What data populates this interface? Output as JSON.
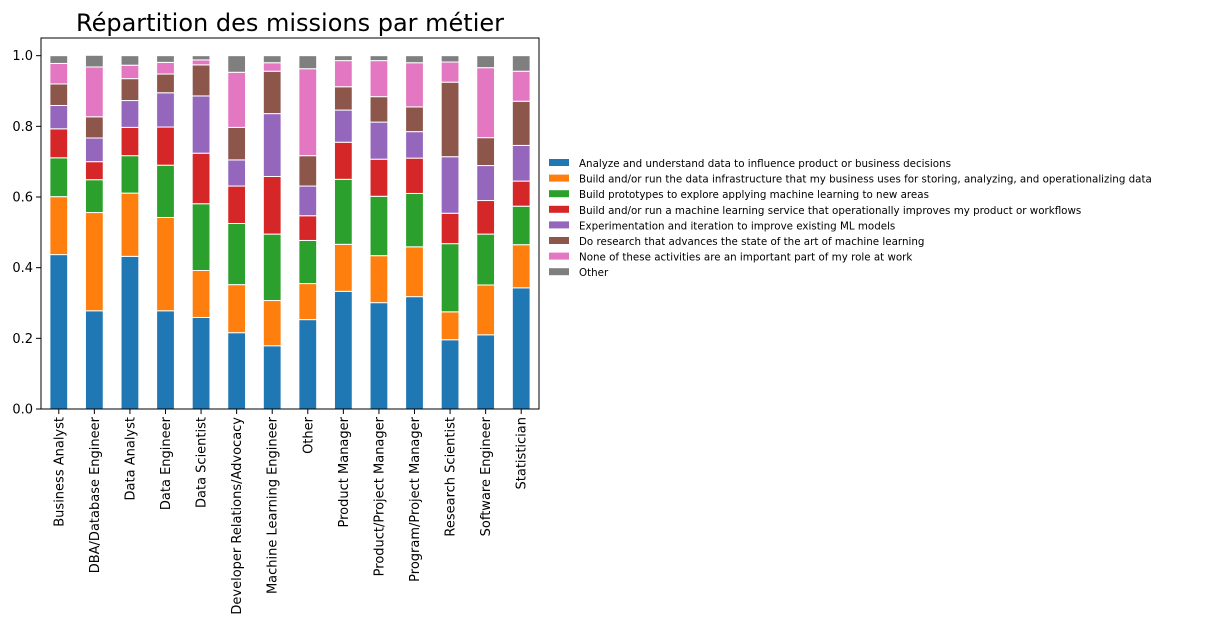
{
  "chart_data": {
    "type": "bar",
    "stacked": true,
    "normalized": true,
    "title": "Répartition des missions par métier",
    "xlabel": "",
    "ylabel": "",
    "ylim": [
      0,
      1.05
    ],
    "yticks": [
      "0.0",
      "0.2",
      "0.4",
      "0.6",
      "0.8",
      "1.0"
    ],
    "ytick_values": [
      0,
      0.2,
      0.4,
      0.6,
      0.8,
      1.0
    ],
    "grid": false,
    "legend_position": "right",
    "categories": [
      "Business Analyst",
      "DBA/Database Engineer",
      "Data Analyst",
      "Data Engineer",
      "Data Scientist",
      "Developer Relations/Advocacy",
      "Machine Learning Engineer",
      "Other",
      "Product Manager",
      "Product/Project Manager",
      "Program/Project Manager",
      "Research Scientist",
      "Software Engineer",
      "Statistician"
    ],
    "series": [
      {
        "name": "Analyze and understand data to influence product or business decisions",
        "color": "#1f77b4",
        "values": [
          0.437,
          0.278,
          0.432,
          0.278,
          0.259,
          0.216,
          0.179,
          0.253,
          0.333,
          0.301,
          0.318,
          0.196,
          0.21,
          0.343
        ]
      },
      {
        "name": "Build and/or run the data infrastructure that my business uses for storing, analyzing, and operationalizing data",
        "color": "#ff7f0e",
        "values": [
          0.164,
          0.278,
          0.179,
          0.264,
          0.133,
          0.136,
          0.128,
          0.102,
          0.133,
          0.133,
          0.141,
          0.079,
          0.141,
          0.122
        ]
      },
      {
        "name": "Build prototypes to explore applying machine learning to new areas",
        "color": "#2ca02c",
        "values": [
          0.11,
          0.093,
          0.106,
          0.148,
          0.189,
          0.173,
          0.188,
          0.122,
          0.184,
          0.168,
          0.151,
          0.193,
          0.144,
          0.109
        ]
      },
      {
        "name": "Build and/or run a machine learning service that operationally improves my product or workflows",
        "color": "#d62728",
        "values": [
          0.082,
          0.051,
          0.08,
          0.108,
          0.143,
          0.106,
          0.163,
          0.07,
          0.105,
          0.105,
          0.1,
          0.086,
          0.095,
          0.071
        ]
      },
      {
        "name": "Experimentation and iteration to improve existing ML models",
        "color": "#9467bd",
        "values": [
          0.066,
          0.067,
          0.076,
          0.097,
          0.162,
          0.074,
          0.178,
          0.084,
          0.091,
          0.105,
          0.075,
          0.16,
          0.099,
          0.101
        ]
      },
      {
        "name": "Do research that advances the state of the art of machine learning",
        "color": "#8c564b",
        "values": [
          0.061,
          0.06,
          0.062,
          0.053,
          0.088,
          0.092,
          0.12,
          0.086,
          0.066,
          0.072,
          0.07,
          0.211,
          0.079,
          0.125
        ]
      },
      {
        "name": "None of these activities are an important part of my role at work",
        "color": "#e377c2",
        "values": [
          0.058,
          0.141,
          0.038,
          0.033,
          0.014,
          0.156,
          0.024,
          0.246,
          0.074,
          0.102,
          0.125,
          0.057,
          0.198,
          0.085
        ]
      },
      {
        "name": "Other",
        "color": "#7f7f7f",
        "values": [
          0.022,
          0.033,
          0.027,
          0.019,
          0.012,
          0.047,
          0.02,
          0.037,
          0.014,
          0.014,
          0.02,
          0.018,
          0.034,
          0.044
        ]
      }
    ]
  }
}
